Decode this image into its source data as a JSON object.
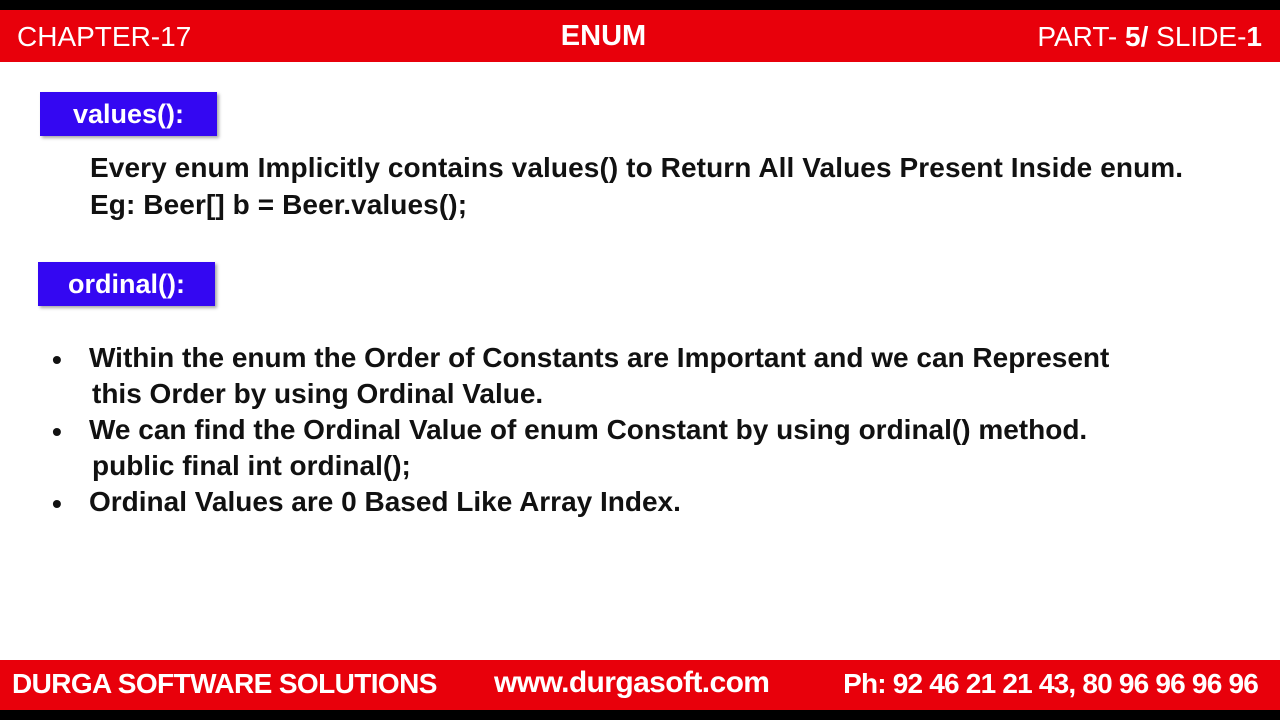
{
  "header": {
    "chapter": "CHAPTER-17",
    "topic": "ENUM",
    "part_prefix": "PART- ",
    "part_number": "5/",
    "slide_prefix": " SLIDE-",
    "slide_number": "1"
  },
  "sections": {
    "values": {
      "heading": "values():",
      "line1": "Every enum Implicitly contains values() to Return All Values Present Inside enum.",
      "line2": "Eg: Beer[] b = Beer.values();"
    },
    "ordinal": {
      "heading": "ordinal():",
      "bullets": [
        {
          "line1": "Within the enum the Order of Constants are Important and we can Represent",
          "line2": "this Order by using Ordinal Value."
        },
        {
          "line1": "We can find the Ordinal Value of enum Constant by using ordinal() method.",
          "line2": "public final int ordinal();"
        },
        {
          "line1": "Ordinal Values are  0 Based Like Array Index."
        }
      ],
      "bullet_symbol": "•"
    }
  },
  "footer": {
    "company": "DURGA SOFTWARE SOLUTIONS",
    "website": "www.durgasoft.com",
    "phone": "Ph: 92 46 21 21 43, 80 96 96 96 96"
  },
  "colors": {
    "header_bar": "#e8000b",
    "tag_background": "#3407f2",
    "text": "#111111"
  }
}
